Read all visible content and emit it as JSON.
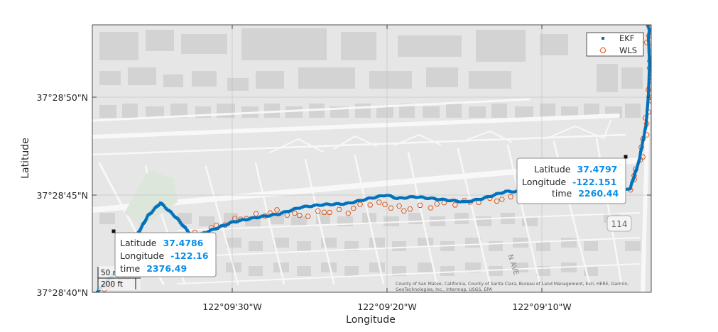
{
  "axes": {
    "xlabel": "Longitude",
    "ylabel": "Latitude",
    "x_ticks": [
      "122°09'30\"W",
      "122°09'20\"W",
      "122°09'10\"W"
    ],
    "y_ticks": [
      "37°28'50\"N",
      "37°28'45\"N",
      "37°28'40\"N"
    ]
  },
  "legend": {
    "placement": "top-right",
    "entries": [
      {
        "label": "EKF",
        "color": "#0072bd",
        "marker": "point"
      },
      {
        "label": "WLS",
        "color": "#d95319",
        "marker": "hexagram"
      }
    ]
  },
  "datatips": [
    {
      "lat_label": "Latitude",
      "lat": "37.4786",
      "lon_label": "Longitude",
      "lon": "-122.16",
      "time_label": "time",
      "time": "2376.49"
    },
    {
      "lat_label": "Latitude",
      "lat": "37.4797",
      "lon_label": "Longitude",
      "lon": "-122.151",
      "time_label": "time",
      "time": "2260.44"
    }
  ],
  "scalebar": {
    "metric": "50 m",
    "imperial": "200 ft"
  },
  "map_labels": {
    "route_shield": "114",
    "street": "N AVE"
  },
  "attribution": {
    "line1": "County of San Mateo, California, County of Santa Clara, Bureau of Land Management, Esri, HERE, Garmin,",
    "line2": "GeoTechnologies, Inc., Intermap, USGS, EPA"
  },
  "chart_data": {
    "type": "scatter",
    "xlabel": "Longitude",
    "ylabel": "Latitude",
    "xlim": [
      -122.16038,
      -122.15053
    ],
    "ylim": [
      37.47772,
      37.4808
    ],
    "grid": true,
    "basemap": "streets-light",
    "series": [
      {
        "name": "EKF",
        "color": "#0072bd",
        "x": [
          -122.16033,
          -122.1599,
          -122.1596,
          -122.1594,
          -122.15918,
          -122.1589,
          -122.1586,
          -122.1583,
          -122.1579,
          -122.1575,
          -122.1571,
          -122.1567,
          -122.1563,
          -122.1559,
          -122.1555,
          -122.1552,
          -122.155,
          -122.1547,
          -122.1544,
          -122.1541,
          -122.1538,
          -122.1535,
          -122.1531,
          -122.1527,
          -122.1523,
          -122.152,
          -122.1518,
          -122.1516,
          -122.1514,
          -122.1511,
          -122.1509,
          -122.15075,
          -122.15062,
          -122.15058,
          -122.15056,
          -122.15058,
          -122.15056,
          -122.1506
        ],
        "y": [
          37.4777,
          37.478,
          37.47837,
          37.4786,
          37.47875,
          37.47858,
          37.47835,
          37.47843,
          37.47853,
          37.47858,
          37.47862,
          37.4787,
          37.47873,
          37.47874,
          37.4788,
          37.47884,
          37.4788,
          37.47882,
          37.4788,
          37.47878,
          37.47876,
          37.4788,
          37.47888,
          37.47888,
          37.47886,
          37.4789,
          37.47893,
          37.47889,
          37.47886,
          37.47887,
          37.47892,
          37.47922,
          37.47965,
          37.48,
          37.48035,
          37.48065,
          37.48075,
          37.4808
        ]
      },
      {
        "name": "WLS",
        "color": "#d95319",
        "x": [
          -122.1603,
          -122.16,
          -122.1596,
          -122.1593,
          -122.1588,
          -122.1583,
          -122.1579,
          -122.1575,
          -122.1571,
          -122.1567,
          -122.1563,
          -122.1559,
          -122.1555,
          -122.1552,
          -122.1549,
          -122.1546,
          -122.1543,
          -122.154,
          -122.1537,
          -122.1534,
          -122.153,
          -122.1526,
          -122.1522,
          -122.1518,
          -122.1515,
          -122.1512,
          -122.1509,
          -122.1507,
          -122.15056,
          -122.15053,
          -122.15058,
          -122.15055
        ],
        "y": [
          37.4777,
          37.47782,
          37.478,
          37.47835,
          37.47833,
          37.47845,
          37.47855,
          37.4786,
          37.47865,
          37.4786,
          37.47865,
          37.47865,
          37.47875,
          37.47873,
          37.47867,
          37.4787,
          37.47873,
          37.47875,
          37.47876,
          37.47878,
          37.4788,
          37.47882,
          37.4788,
          37.47888,
          37.47885,
          37.47887,
          37.47892,
          37.4793,
          37.4799,
          37.48045,
          37.4806,
          37.48078
        ]
      }
    ]
  }
}
